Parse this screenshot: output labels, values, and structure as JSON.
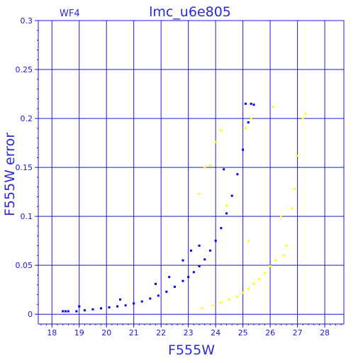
{
  "chart_data": {
    "type": "scatter",
    "title": "lmc_u6e805",
    "subtitle": "WF4",
    "xlabel": "F555W",
    "ylabel": "F555W error",
    "xlim": [
      17.5,
      28.7
    ],
    "ylim": [
      -0.01,
      0.3
    ],
    "xticks": [
      "18",
      "19",
      "20",
      "21",
      "22",
      "23",
      "24",
      "25",
      "26",
      "27",
      "28"
    ],
    "yticks": [
      "0",
      "0.05",
      "0.1",
      "0.15",
      "0.2",
      "0.25",
      "0.3"
    ],
    "grid": true,
    "series": [
      {
        "color": "#0000ee",
        "points": [
          [
            18.4,
            0.003
          ],
          [
            18.5,
            0.003
          ],
          [
            18.6,
            0.003
          ],
          [
            18.9,
            0.003
          ],
          [
            19.2,
            0.004
          ],
          [
            19.5,
            0.005
          ],
          [
            19.8,
            0.006
          ],
          [
            20.1,
            0.007
          ],
          [
            20.4,
            0.008
          ],
          [
            20.7,
            0.009
          ],
          [
            21.0,
            0.011
          ],
          [
            21.3,
            0.013
          ],
          [
            21.6,
            0.016
          ],
          [
            21.9,
            0.019
          ],
          [
            22.2,
            0.023
          ],
          [
            22.5,
            0.028
          ],
          [
            22.8,
            0.034
          ],
          [
            23.0,
            0.038
          ],
          [
            23.2,
            0.043
          ],
          [
            23.4,
            0.049
          ],
          [
            23.6,
            0.056
          ],
          [
            23.8,
            0.065
          ],
          [
            24.0,
            0.075
          ],
          [
            24.2,
            0.088
          ],
          [
            24.4,
            0.103
          ],
          [
            24.6,
            0.121
          ],
          [
            24.8,
            0.143
          ],
          [
            25.0,
            0.168
          ],
          [
            25.2,
            0.196
          ],
          [
            25.4,
            0.214
          ],
          [
            22.3,
            0.038
          ],
          [
            22.8,
            0.055
          ],
          [
            23.1,
            0.065
          ],
          [
            23.4,
            0.07
          ],
          [
            24.3,
            0.148
          ],
          [
            25.1,
            0.215
          ],
          [
            25.3,
            0.215
          ],
          [
            21.8,
            0.031
          ],
          [
            20.5,
            0.015
          ],
          [
            19.0,
            0.008
          ]
        ]
      },
      {
        "color": "#ffff00",
        "points": [
          [
            23.5,
            0.006
          ],
          [
            23.9,
            0.009
          ],
          [
            24.2,
            0.012
          ],
          [
            24.5,
            0.015
          ],
          [
            24.8,
            0.018
          ],
          [
            25.0,
            0.022
          ],
          [
            25.2,
            0.026
          ],
          [
            25.4,
            0.031
          ],
          [
            25.6,
            0.036
          ],
          [
            25.8,
            0.042
          ],
          [
            26.0,
            0.049
          ],
          [
            26.2,
            0.055
          ],
          [
            26.5,
            0.06
          ],
          [
            23.6,
            0.15
          ],
          [
            23.8,
            0.152
          ],
          [
            24.0,
            0.176
          ],
          [
            24.2,
            0.188
          ],
          [
            25.1,
            0.19
          ],
          [
            25.3,
            0.2
          ],
          [
            26.1,
            0.212
          ],
          [
            26.4,
            0.1
          ],
          [
            26.6,
            0.07
          ],
          [
            26.8,
            0.108
          ],
          [
            26.9,
            0.128
          ],
          [
            27.0,
            0.162
          ],
          [
            27.2,
            0.2
          ],
          [
            27.3,
            0.205
          ],
          [
            25.2,
            0.075
          ],
          [
            24.4,
            0.111
          ],
          [
            23.4,
            0.123
          ]
        ]
      }
    ]
  }
}
